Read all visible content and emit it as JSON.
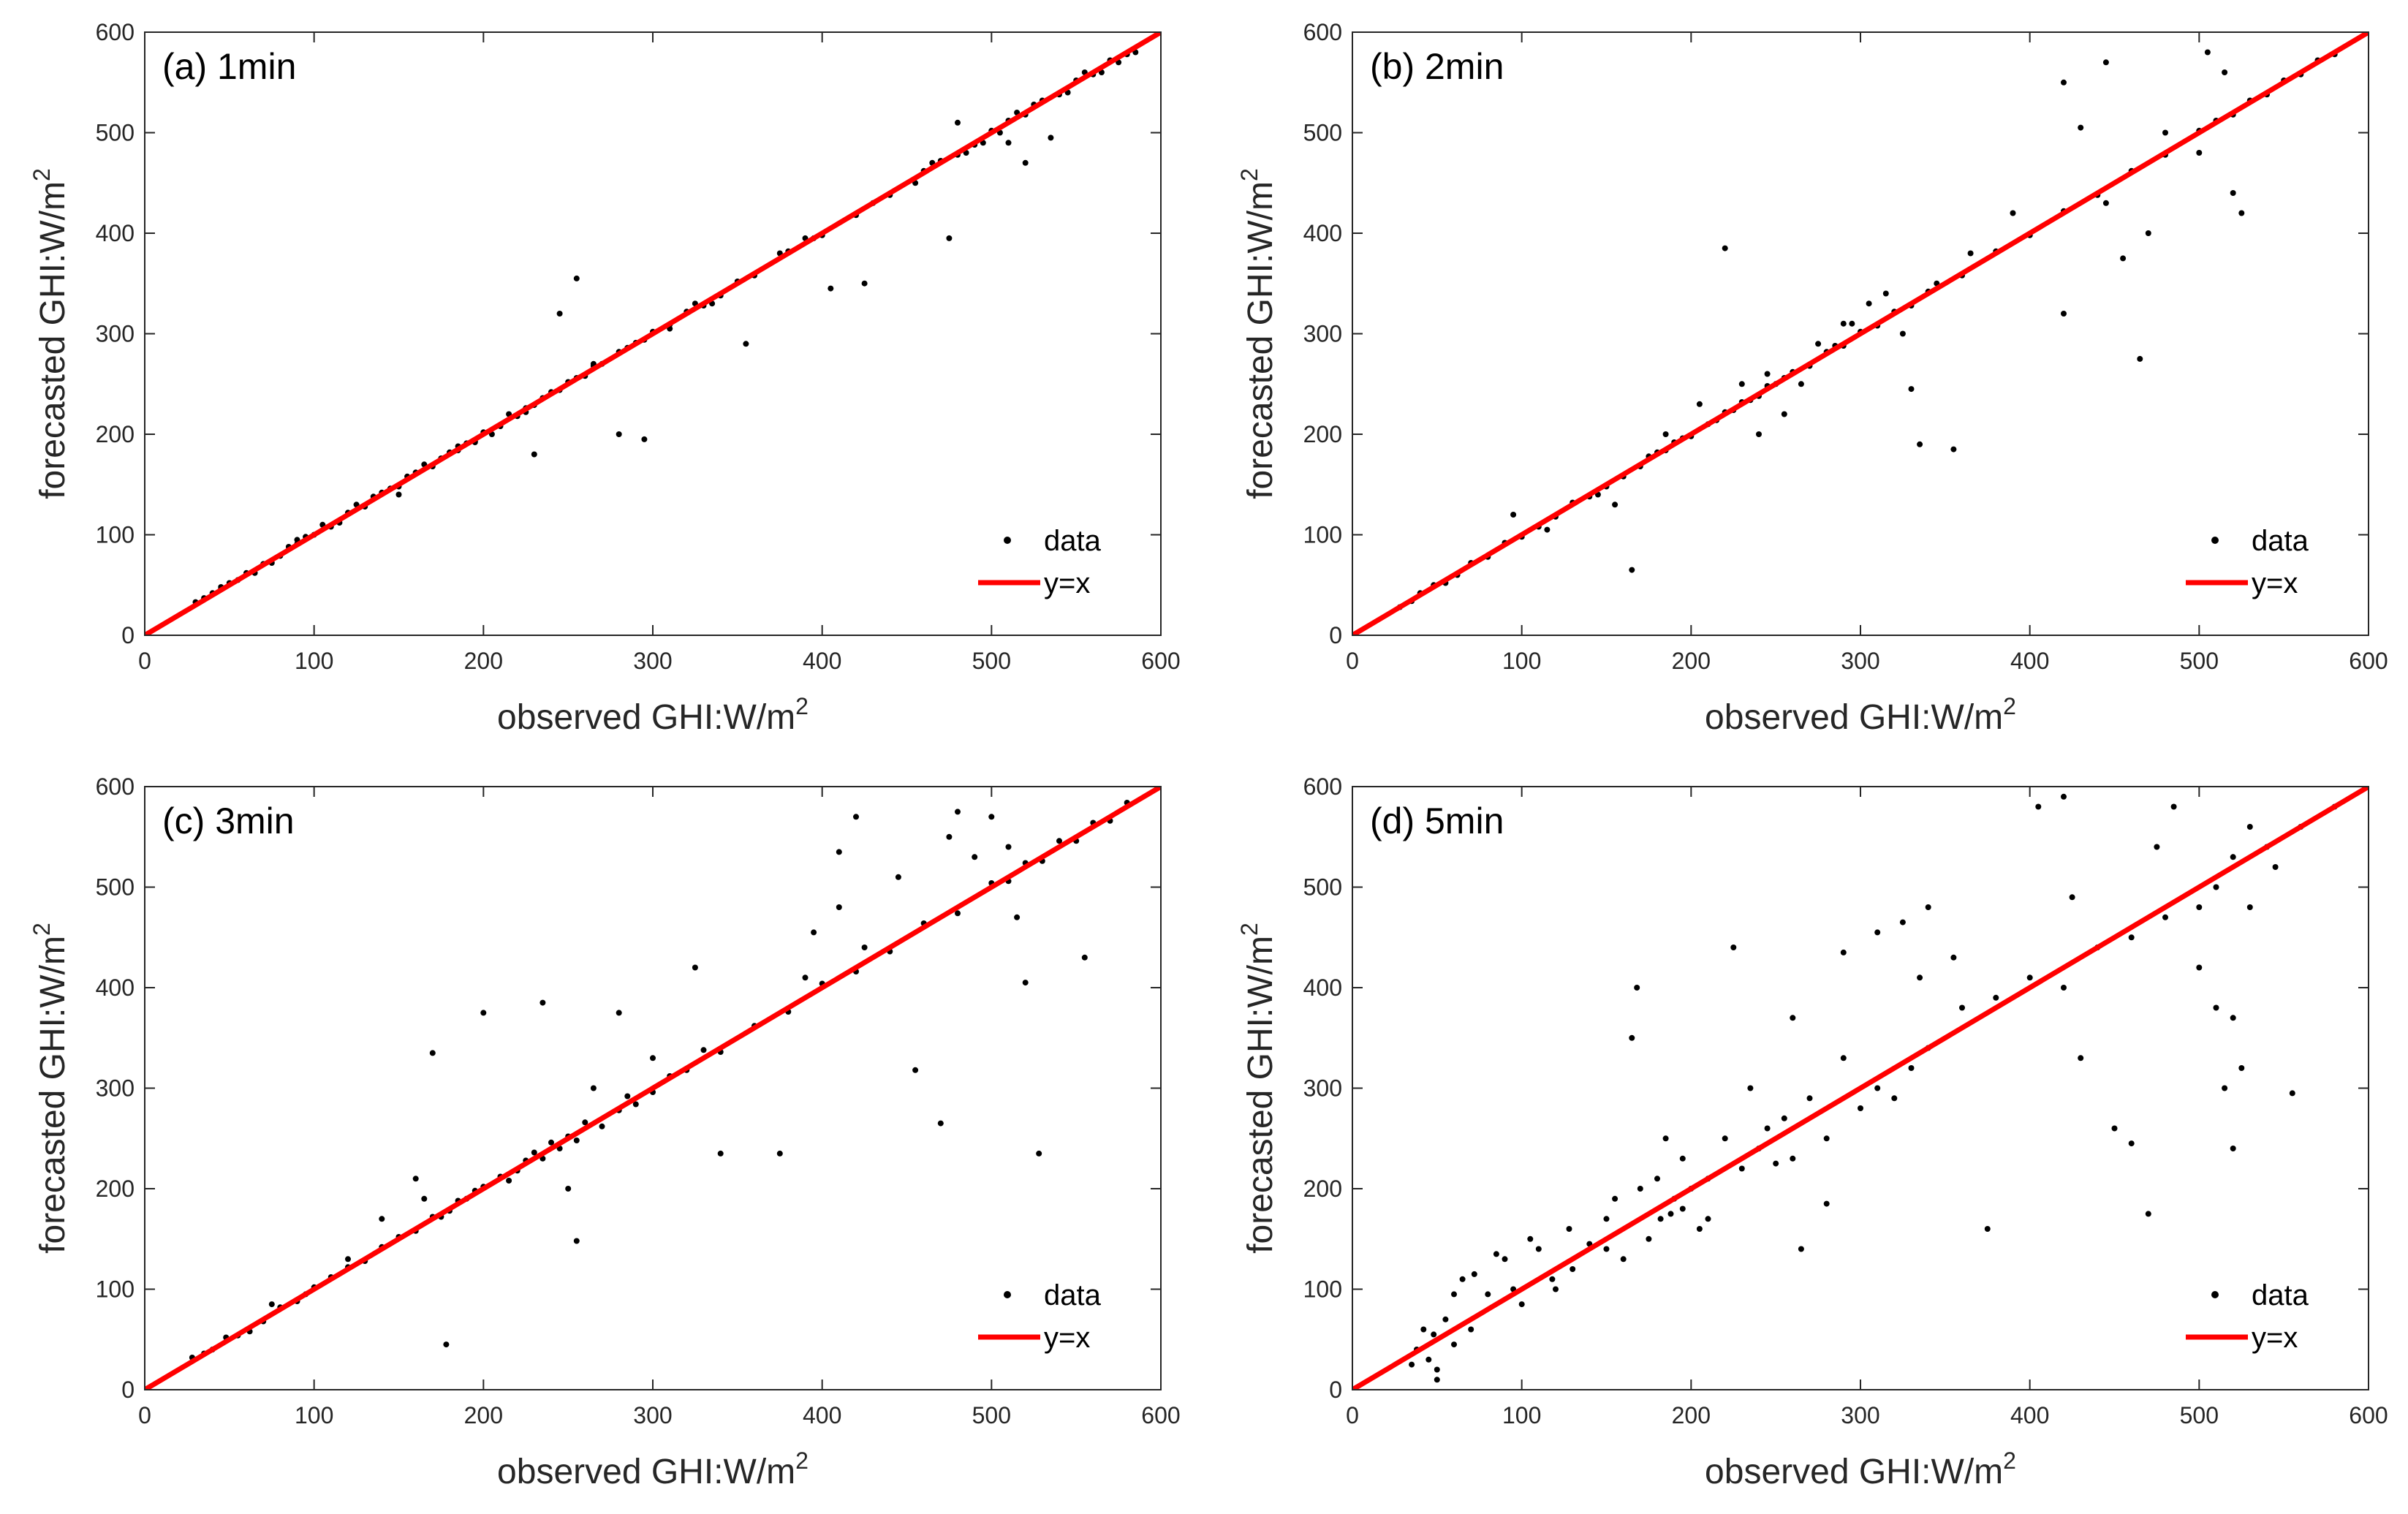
{
  "figure": {
    "colors": {
      "data": "#000000",
      "line": "#ff0000",
      "axis": "#262626",
      "background": "#ffffff"
    }
  },
  "chart_data": [
    {
      "type": "scatter",
      "title": "(a) 1min",
      "xlabel": "observed GHI:W/m",
      "xlabel_sup": "2",
      "ylabel": "forecasted GHI:W/m",
      "ylabel_sup": "2",
      "xlim": [
        0,
        600
      ],
      "ylim": [
        0,
        600
      ],
      "xticks": [
        0,
        100,
        200,
        300,
        400,
        500,
        600
      ],
      "yticks": [
        0,
        100,
        200,
        300,
        400,
        500,
        600
      ],
      "grid": false,
      "legend": {
        "position": "bottom-right",
        "entries": [
          "data",
          "y=x"
        ]
      },
      "series": [
        {
          "name": "data",
          "type": "scatter",
          "x": [
            30,
            35,
            40,
            45,
            50,
            55,
            60,
            70,
            80,
            90,
            100,
            110,
            120,
            130,
            140,
            150,
            160,
            170,
            175,
            180,
            185,
            190,
            195,
            200,
            210,
            220,
            225,
            230,
            235,
            240,
            245,
            250,
            255,
            260,
            265,
            270,
            280,
            285,
            290,
            295,
            300,
            310,
            320,
            330,
            340,
            350,
            360,
            380,
            400,
            420,
            440,
            460,
            470,
            480,
            490,
            500,
            510,
            520,
            525,
            530,
            540,
            550,
            560,
            570,
            580,
            255,
            280,
            295,
            230,
            245,
            425,
            475,
            405,
            395,
            535,
            480,
            510,
            520,
            150,
            90,
            105,
            125,
            165,
            205,
            215,
            265,
            310,
            325,
            335,
            355,
            375,
            390,
            430,
            455,
            465,
            485,
            495,
            505,
            515,
            545,
            555,
            565,
            575,
            585,
            45,
            65,
            75,
            85,
            95,
            115,
            135,
            145,
            155,
            185,
            195,
            225
          ],
          "y": [
            33,
            37,
            42,
            46,
            52,
            55,
            62,
            71,
            79,
            91,
            100,
            108,
            122,
            128,
            142,
            148,
            162,
            168,
            176,
            182,
            184,
            191,
            193,
            202,
            208,
            218,
            226,
            229,
            236,
            242,
            244,
            252,
            256,
            258,
            268,
            270,
            282,
            286,
            291,
            294,
            302,
            309,
            322,
            328,
            338,
            352,
            358,
            382,
            398,
            418,
            438,
            462,
            472,
            478,
            488,
            502,
            512,
            518,
            528,
            532,
            538,
            552,
            558,
            572,
            578,
            355,
            200,
            195,
            180,
            320,
            350,
            395,
            345,
            395,
            495,
            510,
            490,
            470,
            140,
            95,
            110,
            130,
            170,
            200,
            220,
            270,
            305,
            330,
            330,
            290,
            380,
            395,
            430,
            450,
            470,
            480,
            490,
            500,
            520,
            540,
            560,
            560,
            570,
            580,
            48,
            62,
            72,
            88,
            98,
            112,
            138,
            146,
            158,
            188,
            192,
            222
          ]
        },
        {
          "name": "y=x",
          "type": "line",
          "x": [
            0,
            600
          ],
          "y": [
            0,
            600
          ]
        }
      ]
    },
    {
      "type": "scatter",
      "title": "(b) 2min",
      "xlabel": "observed GHI:W/m",
      "xlabel_sup": "2",
      "ylabel": "forecasted GHI:W/m",
      "ylabel_sup": "2",
      "xlim": [
        0,
        600
      ],
      "ylim": [
        0,
        600
      ],
      "xticks": [
        0,
        100,
        200,
        300,
        400,
        500,
        600
      ],
      "yticks": [
        0,
        100,
        200,
        300,
        400,
        500,
        600
      ],
      "grid": false,
      "legend": {
        "position": "bottom-right",
        "entries": [
          "data",
          "y=x"
        ]
      },
      "series": [
        {
          "name": "data",
          "type": "scatter",
          "x": [
            28,
            35,
            40,
            48,
            55,
            62,
            70,
            80,
            90,
            100,
            110,
            120,
            130,
            140,
            150,
            160,
            170,
            175,
            180,
            185,
            190,
            195,
            200,
            210,
            215,
            220,
            225,
            230,
            235,
            240,
            245,
            250,
            255,
            260,
            270,
            280,
            285,
            290,
            300,
            310,
            320,
            330,
            340,
            360,
            380,
            400,
            420,
            440,
            460,
            480,
            500,
            510,
            520,
            530,
            540,
            550,
            560,
            570,
            580,
            220,
            165,
            335,
            355,
            330,
            465,
            420,
            445,
            430,
            390,
            505,
            515,
            525,
            520,
            500,
            470,
            455,
            420,
            445,
            480,
            240,
            255,
            265,
            290,
            305,
            315,
            325,
            345,
            365,
            95,
            115,
            145,
            155,
            185,
            205,
            230,
            245,
            275,
            295
          ],
          "y": [
            28,
            34,
            42,
            50,
            52,
            60,
            72,
            78,
            92,
            98,
            108,
            118,
            132,
            138,
            148,
            158,
            168,
            178,
            182,
            184,
            192,
            196,
            198,
            210,
            214,
            222,
            224,
            232,
            234,
            238,
            248,
            250,
            256,
            262,
            268,
            282,
            288,
            288,
            302,
            308,
            322,
            328,
            342,
            358,
            382,
            398,
            422,
            438,
            462,
            478,
            502,
            512,
            518,
            532,
            538,
            552,
            558,
            572,
            578,
            385,
            65,
            190,
            185,
            245,
            275,
            550,
            570,
            505,
            420,
            580,
            560,
            420,
            440,
            480,
            400,
            375,
            320,
            430,
            500,
            200,
            220,
            250,
            310,
            330,
            340,
            300,
            350,
            380,
            120,
            105,
            140,
            130,
            200,
            230,
            250,
            260,
            290,
            310
          ]
        },
        {
          "name": "y=x",
          "type": "line",
          "x": [
            0,
            600
          ],
          "y": [
            0,
            600
          ]
        }
      ]
    },
    {
      "type": "scatter",
      "title": "(c) 3min",
      "xlabel": "observed GHI:W/m",
      "xlabel_sup": "2",
      "ylabel": "forecasted GHI:W/m",
      "ylabel_sup": "2",
      "xlim": [
        0,
        600
      ],
      "ylim": [
        0,
        600
      ],
      "xticks": [
        0,
        100,
        200,
        300,
        400,
        500,
        600
      ],
      "yticks": [
        0,
        100,
        200,
        300,
        400,
        500,
        600
      ],
      "grid": false,
      "legend": {
        "position": "bottom-right",
        "entries": [
          "data",
          "y=x"
        ]
      },
      "series": [
        {
          "name": "data",
          "type": "scatter",
          "x": [
            28,
            35,
            40,
            48,
            55,
            62,
            70,
            80,
            90,
            100,
            110,
            120,
            130,
            140,
            150,
            160,
            170,
            175,
            180,
            185,
            190,
            195,
            200,
            210,
            215,
            220,
            225,
            230,
            235,
            240,
            245,
            250,
            255,
            260,
            270,
            280,
            285,
            290,
            300,
            310,
            320,
            330,
            340,
            360,
            380,
            400,
            420,
            440,
            460,
            480,
            500,
            510,
            520,
            530,
            540,
            550,
            560,
            570,
            580,
            170,
            200,
            235,
            178,
            255,
            340,
            375,
            455,
            470,
            528,
            520,
            555,
            510,
            515,
            500,
            480,
            475,
            490,
            420,
            445,
            410,
            425,
            390,
            395,
            410,
            280,
            300,
            325,
            250,
            265,
            160,
            165,
            140,
            120,
            95,
            75
          ],
          "y": [
            32,
            36,
            40,
            52,
            54,
            58,
            68,
            82,
            88,
            102,
            112,
            122,
            128,
            142,
            152,
            158,
            172,
            172,
            178,
            188,
            190,
            198,
            202,
            212,
            208,
            218,
            228,
            236,
            230,
            246,
            240,
            252,
            248,
            266,
            262,
            278,
            292,
            284,
            296,
            312,
            318,
            338,
            336,
            362,
            376,
            404,
            416,
            436,
            464,
            474,
            504,
            506,
            524,
            526,
            546,
            546,
            564,
            566,
            584,
            335,
            375,
            385,
            45,
            148,
            235,
            235,
            318,
            265,
            235,
            405,
            430,
            540,
            470,
            570,
            575,
            550,
            530,
            570,
            510,
            535,
            440,
            410,
            455,
            480,
            375,
            330,
            420,
            200,
            300,
            210,
            190,
            170,
            130,
            95,
            85
          ]
        },
        {
          "name": "y=x",
          "type": "line",
          "x": [
            0,
            600
          ],
          "y": [
            0,
            600
          ]
        }
      ]
    },
    {
      "type": "scatter",
      "title": "(d) 5min",
      "xlabel": "observed GHI:W/m",
      "xlabel_sup": "2",
      "ylabel": "forecasted GHI:W/m",
      "ylabel_sup": "2",
      "xlim": [
        0,
        600
      ],
      "ylim": [
        0,
        600
      ],
      "xticks": [
        0,
        100,
        200,
        300,
        400,
        500,
        600
      ],
      "yticks": [
        0,
        100,
        200,
        300,
        400,
        500,
        600
      ],
      "grid": false,
      "legend": {
        "position": "bottom-right",
        "entries": [
          "data",
          "y=x"
        ]
      },
      "series": [
        {
          "name": "data",
          "type": "scatter",
          "x": [
            35,
            38,
            42,
            45,
            48,
            50,
            55,
            60,
            65,
            70,
            80,
            90,
            100,
            110,
            120,
            130,
            140,
            150,
            160,
            170,
            175,
            180,
            182,
            185,
            188,
            190,
            195,
            200,
            210,
            220,
            230,
            235,
            240,
            245,
            250,
            255,
            260,
            270,
            280,
            290,
            300,
            310,
            320,
            330,
            340,
            360,
            380,
            400,
            420,
            440,
            460,
            480,
            500,
            510,
            520,
            530,
            540,
            560,
            580,
            405,
            420,
            425,
            430,
            450,
            460,
            470,
            485,
            500,
            510,
            515,
            520,
            525,
            530,
            555,
            520,
            545,
            475,
            168,
            165,
            225,
            260,
            280,
            290,
            310,
            325,
            335,
            340,
            355,
            375,
            50,
            60,
            72,
            85,
            95,
            105,
            118,
            128,
            150,
            155,
            195,
            205,
            210,
            265
          ],
          "y": [
            25,
            40,
            60,
            30,
            55,
            20,
            70,
            45,
            110,
            60,
            95,
            130,
            85,
            140,
            100,
            120,
            145,
            170,
            130,
            200,
            150,
            210,
            170,
            250,
            175,
            190,
            230,
            200,
            210,
            250,
            220,
            300,
            240,
            260,
            225,
            270,
            230,
            290,
            250,
            330,
            280,
            300,
            290,
            320,
            340,
            380,
            390,
            410,
            400,
            440,
            450,
            470,
            480,
            500,
            530,
            560,
            540,
            560,
            580,
            580,
            590,
            490,
            330,
            260,
            245,
            175,
            580,
            420,
            380,
            300,
            240,
            320,
            480,
            295,
            370,
            520,
            540,
            400,
            350,
            440,
            370,
            185,
            435,
            455,
            465,
            410,
            480,
            430,
            160,
            10,
            95,
            115,
            135,
            100,
            150,
            110,
            160,
            140,
            190,
            180,
            160,
            170,
            140
          ]
        },
        {
          "name": "y=x",
          "type": "line",
          "x": [
            0,
            600
          ],
          "y": [
            0,
            600
          ]
        }
      ]
    }
  ]
}
